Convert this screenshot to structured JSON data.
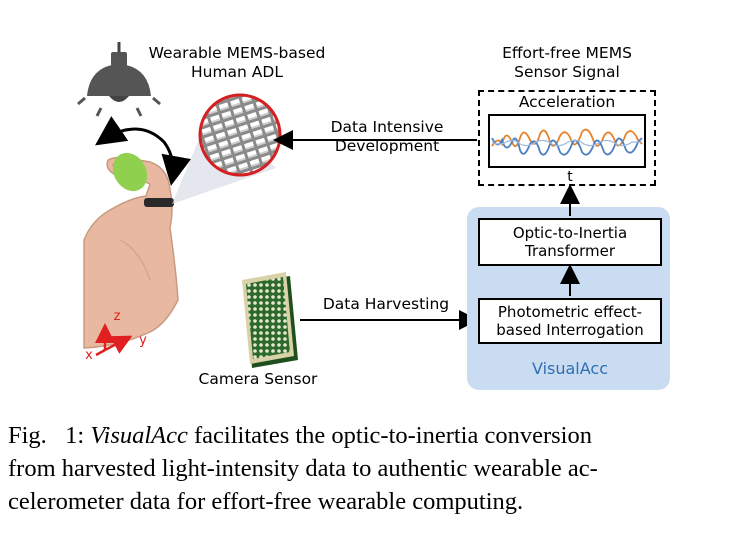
{
  "figure": {
    "wearable_label": [
      "Wearable MEMS-based",
      "Human ADL"
    ],
    "effort_free_label": [
      "Effort-free MEMS",
      "Sensor Signal"
    ],
    "acceleration_title": "Acceleration",
    "time_axis_label": "t",
    "data_intensive_label": [
      "Data Intensive",
      "Development"
    ],
    "data_harvesting_label": "Data Harvesting",
    "camera_sensor_label": "Camera Sensor",
    "transformer_box": [
      "Optic-to-Inertia",
      "Transformer"
    ],
    "interrogation_box": [
      "Photometric effect-",
      "based Interrogation"
    ],
    "panel_label": "VisualAcc",
    "axes": {
      "z": "z",
      "y": "y",
      "x": "x"
    },
    "colors": {
      "panel_bg": "#c9dcf1",
      "panel_text": "#2f6fb5",
      "signal_orange": "#e8822a",
      "signal_blue": "#4a7fc1",
      "axis_red": "#e02020",
      "lens_red": "#d42020"
    }
  },
  "caption": {
    "prefix": "Fig.   1: ",
    "italic": "VisualAcc",
    "lines": [
      " facilitates the optic-to-inertia conversion",
      "from harvested light-intensity data to authentic wearable ac-",
      "celerometer data for effort-free wearable computing."
    ]
  }
}
